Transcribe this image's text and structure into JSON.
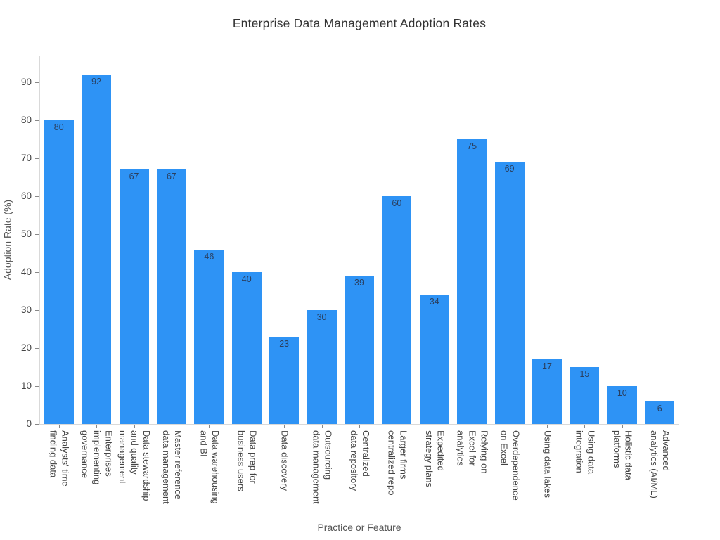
{
  "chart_data": {
    "type": "bar",
    "title": "Enterprise Data Management Adoption Rates",
    "xlabel": "Practice or Feature",
    "ylabel": "Adoption Rate (%)",
    "categories": [
      "Analysts' time\nfinding data",
      "Enterprises\nimplementing\ngovernance",
      "Data stewardship\nand quality\nmanagement",
      "Master reference\ndata management",
      "Data warehousing\nand BI",
      "Data prep for\nbusiness users",
      "Data discovery",
      "Outsourcing\ndata management",
      "Centralized\ndata repository",
      "Larger firms\ncentralized repo",
      "Expedited\nstrategy plans",
      "Relying on\nExcel for\nanalytics",
      "Overdependence\non Excel",
      "Using data lakes",
      "Using data\nintegration",
      "Holistic data\nplatforms",
      "Advanced\nanalytics (AI/ML)"
    ],
    "values": [
      80,
      92,
      67,
      67,
      46,
      40,
      23,
      30,
      39,
      60,
      34,
      75,
      69,
      17,
      15,
      10,
      6
    ],
    "yticks": [
      0,
      10,
      20,
      30,
      40,
      50,
      60,
      70,
      80,
      90
    ],
    "ylim": [
      0,
      96.85
    ],
    "grid": false,
    "legend": false,
    "value_labels_position": "inside-top",
    "bar_color": "#2e93f5",
    "value_label_color": "#2a3f5f",
    "tick_label_color": "#444444",
    "axis_line_color": "#d9d9d9",
    "background_color": "#ffffff"
  }
}
